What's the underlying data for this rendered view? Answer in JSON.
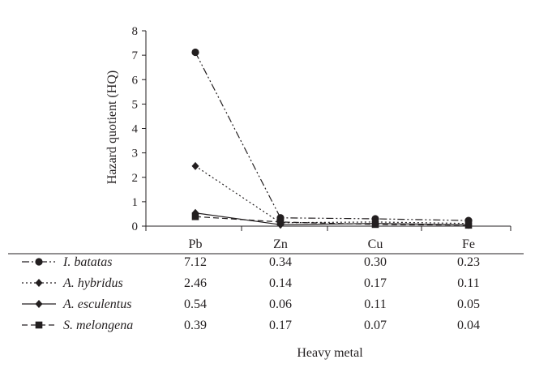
{
  "chart_data": {
    "type": "line",
    "ylabel": "Hazard quotient (HQ)",
    "xlabel": "Heavy metal",
    "categories": [
      "Pb",
      "Zn",
      "Cu",
      "Fe"
    ],
    "ylim": [
      0,
      8
    ],
    "yticks": [
      "0",
      "1",
      "2",
      "3",
      "4",
      "5",
      "6",
      "7",
      "8"
    ],
    "legend": "data-table-below",
    "grid": false,
    "series": [
      {
        "name": "I. batatas",
        "marker": "circle",
        "dash": "dash-dot-dot",
        "values": [
          7.12,
          0.34,
          0.3,
          0.23
        ],
        "labels": [
          "7.12",
          "0.34",
          "0.30",
          "0.23"
        ]
      },
      {
        "name": "A. hybridus",
        "marker": "diamond",
        "dash": "dotted",
        "values": [
          2.46,
          0.14,
          0.17,
          0.11
        ],
        "labels": [
          "2.46",
          "0.14",
          "0.17",
          "0.11"
        ]
      },
      {
        "name": "A. esculentus",
        "marker": "diamond",
        "dash": "solid",
        "values": [
          0.54,
          0.06,
          0.11,
          0.05
        ],
        "labels": [
          "0.54",
          "0.06",
          "0.11",
          "0.05"
        ]
      },
      {
        "name": "S. melongena",
        "marker": "square",
        "dash": "dashed",
        "values": [
          0.39,
          0.17,
          0.07,
          0.04
        ],
        "labels": [
          "0.39",
          "0.17",
          "0.07",
          "0.04"
        ]
      }
    ]
  }
}
